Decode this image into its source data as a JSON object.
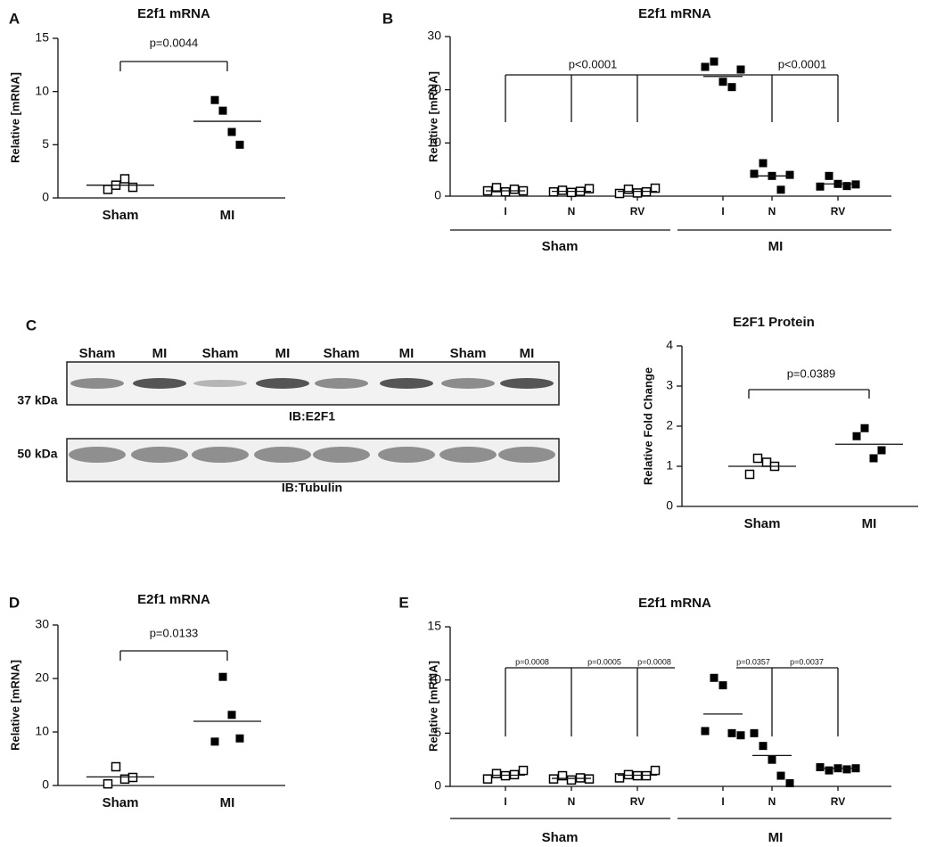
{
  "chart_data": [
    {
      "type": "dot",
      "panel": "A",
      "title": "E2f1 mRNA",
      "ylabel": "Relative [mRNA]",
      "categories": [
        "Sham",
        "MI"
      ],
      "groups": [
        {
          "marker": "open",
          "values": [
            0.8,
            1.2,
            1.8,
            1.0
          ],
          "mean": 1.2
        },
        {
          "marker": "filled",
          "values": [
            9.2,
            8.2,
            6.2,
            5.0
          ],
          "mean": 7.2
        }
      ],
      "annotations": [
        "p=0.0044"
      ],
      "ylim": [
        0,
        15
      ],
      "yticks": [
        0,
        5,
        10,
        15
      ],
      "color": "#000000"
    },
    {
      "type": "dot",
      "panel": "B",
      "title": "E2f1 mRNA",
      "ylabel": "Relative [mRNA]",
      "categories": [
        "I",
        "N",
        "RV",
        "I",
        "N",
        "RV"
      ],
      "supergroups": [
        "Sham",
        "MI"
      ],
      "groups": [
        {
          "marker": "open",
          "values": [
            1.0,
            1.6,
            0.8,
            1.3,
            1.0
          ],
          "mean": 1.0
        },
        {
          "marker": "open",
          "values": [
            0.8,
            1.1,
            0.7,
            0.9,
            1.4
          ],
          "mean": 0.9
        },
        {
          "marker": "open",
          "values": [
            0.5,
            1.3,
            0.6,
            0.8,
            1.5
          ],
          "mean": 0.9
        },
        {
          "marker": "filled",
          "values": [
            24.3,
            25.3,
            21.5,
            20.5,
            23.8
          ],
          "mean": 22.5
        },
        {
          "marker": "filled",
          "values": [
            4.2,
            6.2,
            3.8,
            1.2,
            4.0
          ],
          "mean": 3.8
        },
        {
          "marker": "filled",
          "values": [
            1.8,
            3.8,
            2.3,
            1.9,
            2.2
          ],
          "mean": 2.3
        }
      ],
      "annotations": [
        "p<0.0001",
        "p<0.0001"
      ],
      "ylim": [
        0,
        30
      ],
      "yticks": [
        0,
        10,
        20,
        30
      ],
      "color": "#000000"
    },
    {
      "type": "dot",
      "title": "E2F1 Protein",
      "ylabel": "Relative Fold Change",
      "categories": [
        "Sham",
        "MI"
      ],
      "groups": [
        {
          "marker": "open",
          "values": [
            0.8,
            1.2,
            1.1,
            1.0
          ],
          "mean": 1.0
        },
        {
          "marker": "filled",
          "values": [
            1.75,
            1.95,
            1.2,
            1.4
          ],
          "mean": 1.55
        }
      ],
      "annotations": [
        "p=0.0389"
      ],
      "ylim": [
        0,
        4
      ],
      "yticks": [
        0,
        1,
        2,
        3,
        4
      ],
      "color": "#000000"
    },
    {
      "type": "dot",
      "panel": "D",
      "title": "E2f1 mRNA",
      "ylabel": "Relative [mRNA]",
      "categories": [
        "Sham",
        "MI"
      ],
      "groups": [
        {
          "marker": "open",
          "values": [
            0.3,
            3.5,
            1.2,
            1.5
          ],
          "mean": 1.6
        },
        {
          "marker": "filled",
          "values": [
            8.2,
            20.3,
            13.2,
            8.8
          ],
          "mean": 12.0
        }
      ],
      "annotations": [
        "p=0.0133"
      ],
      "ylim": [
        0,
        30
      ],
      "yticks": [
        0,
        10,
        20,
        30
      ],
      "color": "#000000"
    },
    {
      "type": "dot",
      "panel": "E",
      "title": "E2f1 mRNA",
      "ylabel": "Relative [mRNA]",
      "categories": [
        "I",
        "N",
        "RV",
        "I",
        "N",
        "RV"
      ],
      "supergroups": [
        "Sham",
        "MI"
      ],
      "groups": [
        {
          "marker": "open",
          "values": [
            0.7,
            1.2,
            1.0,
            1.1,
            1.5
          ],
          "mean": 1.05
        },
        {
          "marker": "open",
          "values": [
            0.7,
            1.0,
            0.6,
            0.8,
            0.7
          ],
          "mean": 0.75
        },
        {
          "marker": "open",
          "values": [
            0.8,
            1.1,
            1.0,
            1.0,
            1.5
          ],
          "mean": 1.05
        },
        {
          "marker": "filled",
          "values": [
            5.2,
            10.2,
            9.5,
            5.0,
            4.8
          ],
          "mean": 6.8
        },
        {
          "marker": "filled",
          "values": [
            5.0,
            3.8,
            2.5,
            1.0,
            0.3
          ],
          "mean": 2.9
        },
        {
          "marker": "filled",
          "values": [
            1.8,
            1.5,
            1.7,
            1.6,
            1.7
          ],
          "mean": 1.7
        }
      ],
      "annotations": [
        "p=0.0008",
        "p=0.0005",
        "p=0.0008",
        "p=0.0357",
        "p=0.0037"
      ],
      "ylim": [
        0,
        15
      ],
      "yticks": [
        0,
        5,
        10,
        15
      ],
      "color": "#000000"
    }
  ],
  "blot": {
    "panel": "C",
    "lanes": [
      "Sham",
      "MI",
      "Sham",
      "MI",
      "Sham",
      "MI",
      "Sham",
      "MI"
    ],
    "upper_size": "37 kDa",
    "upper_label": "IB:E2F1",
    "lower_size": "50 kDa",
    "lower_label": "IB:Tubulin"
  }
}
